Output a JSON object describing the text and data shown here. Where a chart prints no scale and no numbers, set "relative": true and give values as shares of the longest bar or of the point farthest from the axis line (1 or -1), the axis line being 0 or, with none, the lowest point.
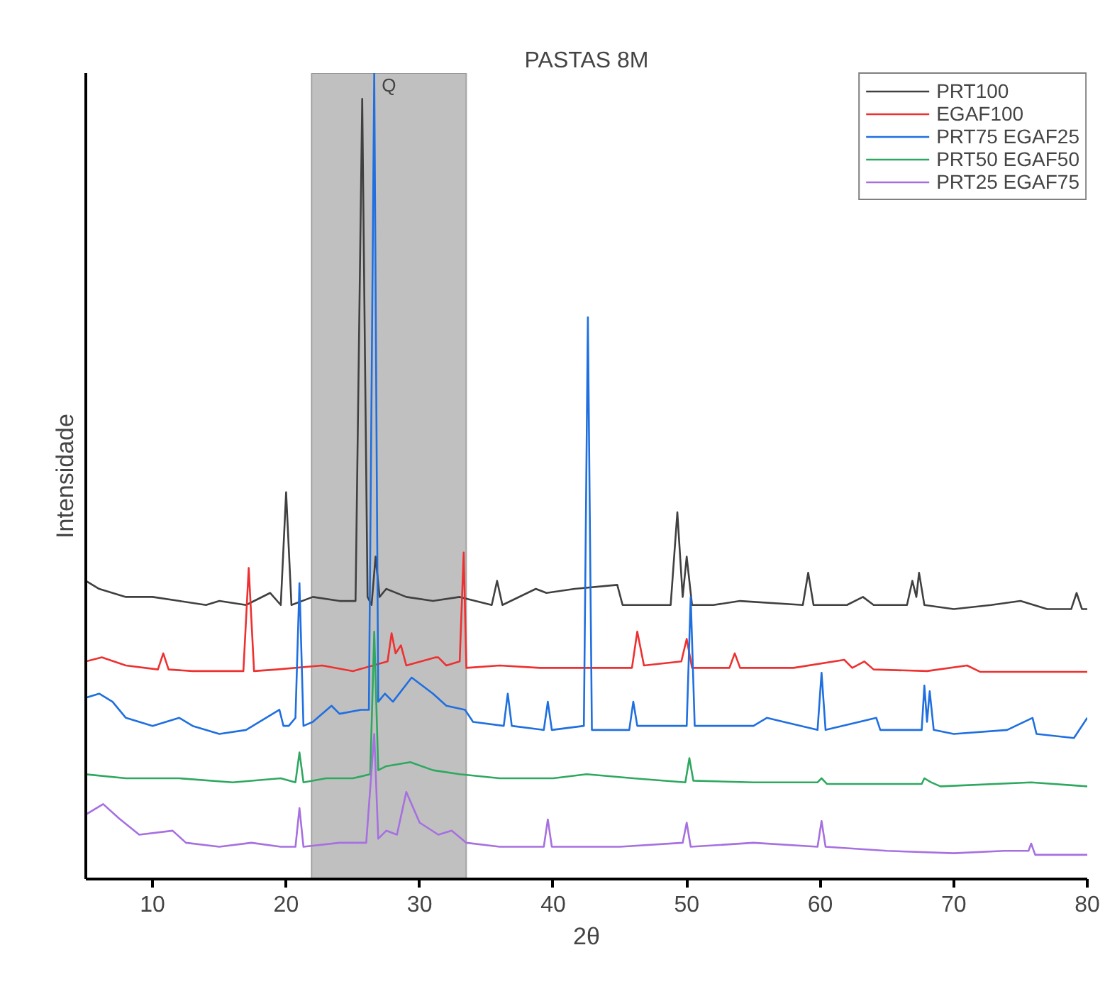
{
  "chart_data": {
    "type": "line",
    "title": "PASTAS 8M",
    "xlabel": "2θ",
    "ylabel": "Intensidade",
    "relative": true,
    "xlim": [
      5,
      80
    ],
    "xticks": [
      10,
      20,
      30,
      40,
      50,
      60,
      70,
      80
    ],
    "grid": false,
    "legend": "top right",
    "marker": "none",
    "line_style": "solid",
    "bands": [
      {
        "axis": "x",
        "from": 21.9,
        "to": 33.5,
        "label": "Q",
        "color": "#c0c0c0"
      }
    ],
    "series": [
      {
        "name": "PRT100",
        "color": "#404040",
        "x": [
          5,
          6,
          8,
          10,
          12,
          14,
          15,
          17,
          18.8,
          19.6,
          20.0,
          20.4,
          22,
          24,
          25.2,
          25.7,
          26.1,
          26.4,
          26.7,
          27.0,
          27.5,
          29,
          31,
          33,
          35.4,
          35.8,
          36.2,
          38.7,
          39.5,
          41.6,
          44.8,
          45.2,
          48.8,
          49.3,
          49.7,
          50.0,
          50.4,
          52,
          54,
          58.7,
          59.1,
          59.5,
          62,
          63.2,
          64,
          66.5,
          66.9,
          67.2,
          67.4,
          67.8,
          70,
          72.8,
          75,
          77,
          78.8,
          79.2,
          79.6,
          80
        ],
        "values": [
          0.37,
          0.36,
          0.35,
          0.35,
          0.345,
          0.34,
          0.345,
          0.34,
          0.355,
          0.34,
          0.48,
          0.34,
          0.35,
          0.345,
          0.345,
          0.968,
          0.35,
          0.34,
          0.4,
          0.35,
          0.36,
          0.35,
          0.345,
          0.35,
          0.34,
          0.37,
          0.34,
          0.36,
          0.355,
          0.36,
          0.365,
          0.34,
          0.34,
          0.455,
          0.35,
          0.4,
          0.34,
          0.34,
          0.345,
          0.34,
          0.38,
          0.34,
          0.34,
          0.35,
          0.34,
          0.34,
          0.37,
          0.35,
          0.38,
          0.34,
          0.335,
          0.34,
          0.345,
          0.335,
          0.335,
          0.355,
          0.335,
          0.335
        ]
      },
      {
        "name": "EGAF100",
        "color": "#ee3030",
        "x": [
          5,
          6.2,
          8,
          10.4,
          10.8,
          11.2,
          13,
          16.8,
          17.2,
          17.6,
          19.3,
          22.7,
          25,
          27.6,
          27.9,
          28.2,
          28.6,
          29,
          31.2,
          31.4,
          32,
          33.0,
          33.3,
          33.5,
          36,
          39,
          42,
          45.9,
          46.3,
          46.8,
          49.6,
          50.0,
          50.4,
          53.2,
          53.6,
          54,
          58,
          61.8,
          62.4,
          63.3,
          64,
          68,
          71,
          72,
          76,
          80
        ],
        "values": [
          0.27,
          0.275,
          0.265,
          0.26,
          0.28,
          0.26,
          0.258,
          0.258,
          0.386,
          0.258,
          0.26,
          0.265,
          0.258,
          0.27,
          0.305,
          0.28,
          0.29,
          0.265,
          0.275,
          0.275,
          0.265,
          0.27,
          0.405,
          0.262,
          0.265,
          0.262,
          0.262,
          0.262,
          0.307,
          0.265,
          0.27,
          0.298,
          0.262,
          0.262,
          0.28,
          0.262,
          0.262,
          0.272,
          0.262,
          0.27,
          0.26,
          0.258,
          0.265,
          0.257,
          0.257,
          0.257
        ]
      },
      {
        "name": "PRT75 EGAF25",
        "color": "#1f6fe0",
        "x": [
          5,
          6,
          7,
          8,
          10,
          12,
          13,
          15,
          17,
          19.5,
          19.8,
          20.2,
          20.7,
          21.0,
          21.3,
          22,
          23.4,
          24,
          25.6,
          26.2,
          26.6,
          26.9,
          27.4,
          28,
          29.4,
          31,
          32,
          33.4,
          34,
          36.3,
          36.6,
          36.9,
          39.3,
          39.6,
          39.9,
          42.3,
          42.6,
          42.9,
          45.7,
          46,
          46.3,
          50.0,
          50.3,
          50.6,
          55,
          56,
          59.8,
          60.1,
          60.4,
          64.2,
          64.5,
          67.6,
          67.8,
          68.0,
          68.2,
          68.5,
          70,
          74,
          75.9,
          76.2,
          79,
          80
        ],
        "values": [
          0.225,
          0.23,
          0.22,
          0.2,
          0.19,
          0.2,
          0.19,
          0.18,
          0.185,
          0.21,
          0.19,
          0.19,
          0.2,
          0.367,
          0.19,
          0.195,
          0.215,
          0.205,
          0.21,
          0.21,
          1.0,
          0.22,
          0.23,
          0.22,
          0.25,
          0.23,
          0.215,
          0.21,
          0.195,
          0.19,
          0.23,
          0.19,
          0.185,
          0.22,
          0.185,
          0.19,
          0.697,
          0.185,
          0.185,
          0.22,
          0.19,
          0.19,
          0.35,
          0.19,
          0.19,
          0.2,
          0.185,
          0.256,
          0.185,
          0.2,
          0.185,
          0.185,
          0.24,
          0.195,
          0.233,
          0.185,
          0.18,
          0.185,
          0.2,
          0.18,
          0.175,
          0.2
        ]
      },
      {
        "name": "PRT50 EGAF50",
        "color": "#2ea860",
        "x": [
          5,
          8,
          12,
          16,
          19.6,
          20.7,
          21.0,
          21.3,
          23,
          25,
          26.3,
          26.6,
          26.9,
          27.5,
          29.3,
          31,
          33,
          36,
          40,
          42.5,
          46,
          49.9,
          50.2,
          50.5,
          55,
          59.8,
          60.1,
          60.5,
          64,
          67.6,
          67.8,
          68.3,
          69,
          75.8,
          80
        ],
        "values": [
          0.13,
          0.125,
          0.125,
          0.12,
          0.125,
          0.12,
          0.157,
          0.12,
          0.125,
          0.125,
          0.13,
          0.307,
          0.135,
          0.14,
          0.145,
          0.135,
          0.13,
          0.125,
          0.125,
          0.13,
          0.125,
          0.12,
          0.15,
          0.122,
          0.12,
          0.12,
          0.125,
          0.118,
          0.118,
          0.118,
          0.125,
          0.12,
          0.115,
          0.12,
          0.115
        ]
      },
      {
        "name": "PRT25 EGAF75",
        "color": "#a670e0",
        "x": [
          5,
          6.3,
          7.5,
          9,
          11.5,
          12.5,
          15,
          17.4,
          19.6,
          20.7,
          21.0,
          21.3,
          24,
          26.0,
          26.6,
          26.9,
          27.5,
          28.3,
          29.0,
          30,
          31.4,
          32.4,
          33.5,
          36,
          39.3,
          39.6,
          39.9,
          45,
          49.7,
          50.0,
          50.3,
          55,
          59.8,
          60.1,
          60.4,
          65,
          70,
          73.8,
          75.6,
          75.8,
          76.1,
          80
        ],
        "values": [
          0.08,
          0.093,
          0.075,
          0.055,
          0.06,
          0.045,
          0.04,
          0.045,
          0.04,
          0.04,
          0.088,
          0.04,
          0.045,
          0.045,
          0.18,
          0.05,
          0.06,
          0.055,
          0.108,
          0.07,
          0.055,
          0.06,
          0.045,
          0.04,
          0.04,
          0.074,
          0.04,
          0.04,
          0.045,
          0.07,
          0.04,
          0.045,
          0.04,
          0.072,
          0.04,
          0.035,
          0.032,
          0.035,
          0.035,
          0.044,
          0.03,
          0.03
        ]
      }
    ]
  }
}
